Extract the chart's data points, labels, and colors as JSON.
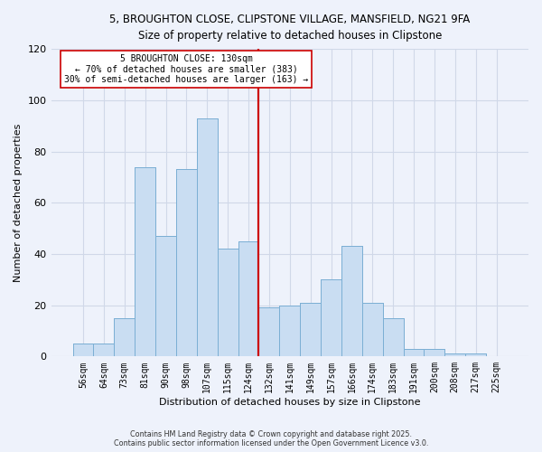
{
  "title_line1": "5, BROUGHTON CLOSE, CLIPSTONE VILLAGE, MANSFIELD, NG21 9FA",
  "title_line2": "Size of property relative to detached houses in Clipstone",
  "xlabel": "Distribution of detached houses by size in Clipstone",
  "ylabel": "Number of detached properties",
  "bar_labels": [
    "56sqm",
    "64sqm",
    "73sqm",
    "81sqm",
    "90sqm",
    "98sqm",
    "107sqm",
    "115sqm",
    "124sqm",
    "132sqm",
    "141sqm",
    "149sqm",
    "157sqm",
    "166sqm",
    "174sqm",
    "183sqm",
    "191sqm",
    "200sqm",
    "208sqm",
    "217sqm",
    "225sqm"
  ],
  "bar_values": [
    5,
    5,
    15,
    74,
    47,
    73,
    93,
    42,
    45,
    19,
    20,
    21,
    30,
    43,
    21,
    15,
    3,
    3,
    1,
    1,
    0
  ],
  "bar_color": "#c9ddf2",
  "bar_edge_color": "#7bafd4",
  "vline_color": "#cc0000",
  "annotation_title": "5 BROUGHTON CLOSE: 130sqm",
  "annotation_line1": "← 70% of detached houses are smaller (383)",
  "annotation_line2": "30% of semi-detached houses are larger (163) →",
  "ylim": [
    0,
    120
  ],
  "yticks": [
    0,
    20,
    40,
    60,
    80,
    100,
    120
  ],
  "background_color": "#eef2fb",
  "grid_color": "#d0d8e8",
  "footer_line1": "Contains HM Land Registry data © Crown copyright and database right 2025.",
  "footer_line2": "Contains public sector information licensed under the Open Government Licence v3.0."
}
